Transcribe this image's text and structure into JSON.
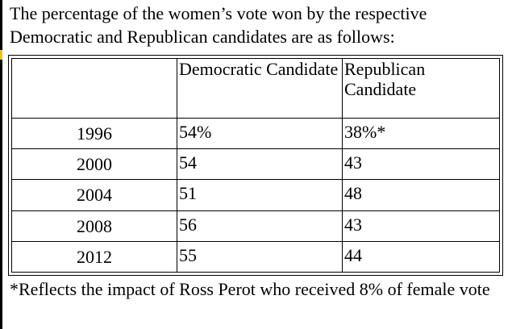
{
  "document": {
    "intro": "The percentage of the women’s vote won by the respective Democratic and Republican candidates are as follows:",
    "table": {
      "headers": [
        "",
        "Democratic Candidate",
        "Republican Candidate"
      ],
      "rows": [
        {
          "year": "1996",
          "dem": "54%",
          "rep": "38%*"
        },
        {
          "year": "2000",
          "dem": "54",
          "rep": "43"
        },
        {
          "year": "2004",
          "dem": "51",
          "rep": "48"
        },
        {
          "year": "2008",
          "dem": "56",
          "rep": "43"
        },
        {
          "year": "2012",
          "dem": "55",
          "rep": "44"
        }
      ]
    },
    "footnote": "*Reflects the impact of Ross Perot who received 8% of female vote"
  }
}
